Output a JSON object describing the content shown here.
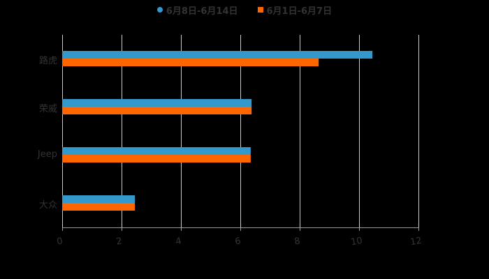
{
  "chart_data": {
    "type": "bar",
    "orientation": "horizontal",
    "title": "",
    "xlabel": "",
    "ylabel": "",
    "categories": [
      "路虎",
      "荣威",
      "Jeep",
      "大众"
    ],
    "series": [
      {
        "name": "6月8日-6月14日",
        "color": "#3399cc",
        "values": [
          10.45,
          6.38,
          6.35,
          2.45
        ]
      },
      {
        "name": "6月1日-6月7日",
        "color": "#ff6600",
        "values": [
          8.64,
          6.38,
          6.35,
          2.45
        ]
      }
    ],
    "xlim": [
      0,
      12
    ],
    "xticks": [
      "0",
      "2",
      "4",
      "6",
      "8",
      "10",
      "12"
    ],
    "grid": true,
    "legend_position": "top"
  },
  "legend": {
    "items": [
      {
        "label": "6月8日-6月14日",
        "color": "#3399cc",
        "marker": "circle"
      },
      {
        "label": "6月1日-6月7日",
        "color": "#ff6600",
        "marker": "square"
      }
    ]
  },
  "colors": {
    "background": "#000000",
    "grid": "#cccccc",
    "text": "#333333"
  }
}
